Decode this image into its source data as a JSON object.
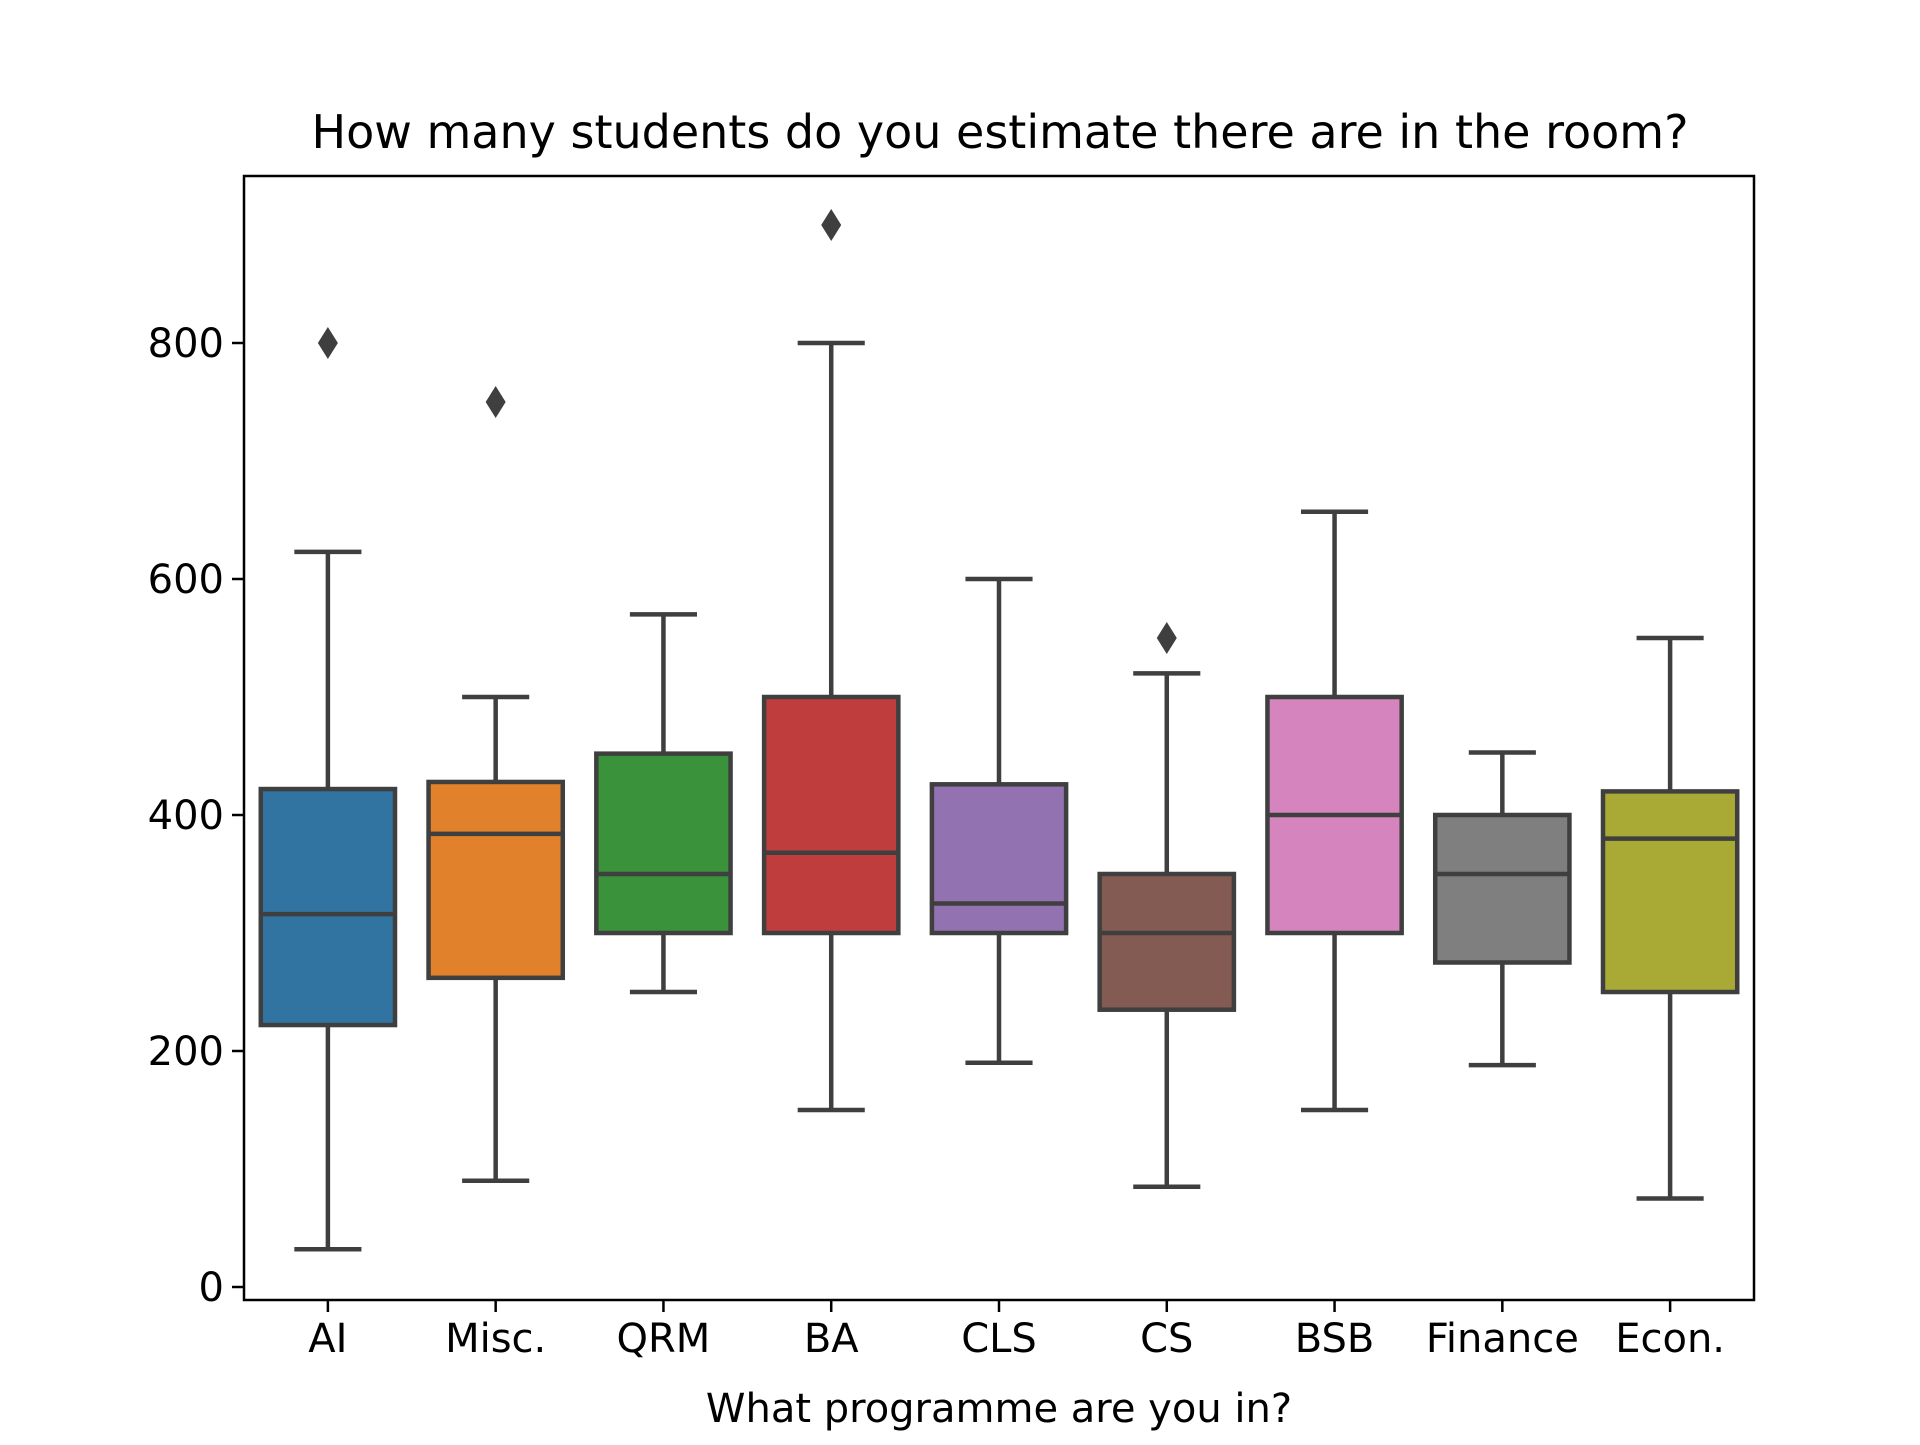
{
  "chart_data": {
    "type": "box",
    "title": "How many students do you estimate there are in the room?",
    "xlabel": "What programme are you in?",
    "ylabel": "",
    "ylim": [
      -12,
      950
    ],
    "yticks": [
      0,
      200,
      400,
      600,
      800
    ],
    "grid": false,
    "legend": "none",
    "categories": [
      "AI",
      "Misc.",
      "QRM",
      "BA",
      "CLS",
      "CS",
      "BSB",
      "Finance",
      "Econ."
    ],
    "boxes": [
      {
        "category": "AI",
        "color": "#3274a1",
        "whisker_low": 32,
        "q1": 222,
        "median": 316,
        "q3": 422,
        "whisker_high": 623,
        "outliers": [
          800
        ]
      },
      {
        "category": "Misc.",
        "color": "#e1812c",
        "whisker_low": 90,
        "q1": 262,
        "median": 384,
        "q3": 428,
        "whisker_high": 500,
        "outliers": [
          750
        ]
      },
      {
        "category": "QRM",
        "color": "#3a923a",
        "whisker_low": 250,
        "q1": 300,
        "median": 350,
        "q3": 452,
        "whisker_high": 570,
        "outliers": []
      },
      {
        "category": "BA",
        "color": "#c03d3e",
        "whisker_low": 150,
        "q1": 300,
        "median": 368,
        "q3": 500,
        "whisker_high": 800,
        "outliers": [
          900
        ]
      },
      {
        "category": "CLS",
        "color": "#9372b2",
        "whisker_low": 190,
        "q1": 300,
        "median": 325,
        "q3": 426,
        "whisker_high": 600,
        "outliers": []
      },
      {
        "category": "CS",
        "color": "#845b53",
        "whisker_low": 85,
        "q1": 235,
        "median": 300,
        "q3": 350,
        "whisker_high": 520,
        "outliers": [
          550
        ]
      },
      {
        "category": "BSB",
        "color": "#d684bd",
        "whisker_low": 150,
        "q1": 300,
        "median": 400,
        "q3": 500,
        "whisker_high": 657,
        "outliers": []
      },
      {
        "category": "Finance",
        "color": "#7f7f7f",
        "whisker_low": 188,
        "q1": 275,
        "median": 350,
        "q3": 400,
        "whisker_high": 453,
        "outliers": []
      },
      {
        "category": "Econ.",
        "color": "#a9aa35",
        "whisker_low": 75,
        "q1": 250,
        "median": 380,
        "q3": 420,
        "whisker_high": 550,
        "outliers": []
      }
    ]
  }
}
